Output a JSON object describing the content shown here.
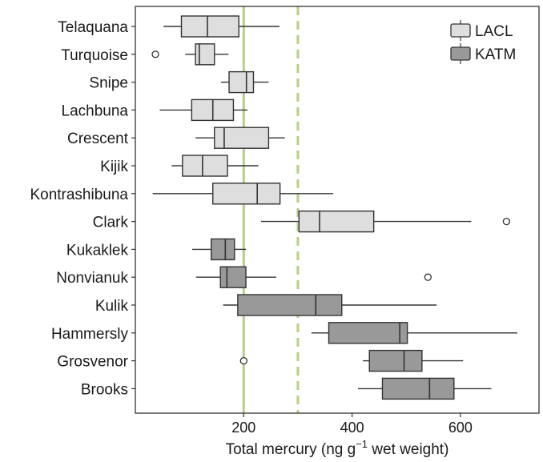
{
  "chart_data": {
    "type": "box",
    "orientation": "horizontal",
    "xlabel": {
      "prefix": "Total mercury (ng g",
      "superscript": "−1",
      "suffix": " wet weight)"
    },
    "xlim": [
      0,
      745
    ],
    "xticks": [
      200,
      400,
      600
    ],
    "xtick_labels": [
      "200",
      "400",
      "600"
    ],
    "reference_lines": [
      {
        "x": 200,
        "style": "solid",
        "color": "#b5cf86"
      },
      {
        "x": 300,
        "style": "dashed",
        "color": "#b5cf86"
      }
    ],
    "legend": {
      "position": "top-right",
      "entries": [
        {
          "label": "LACL",
          "color": "#dedede"
        },
        {
          "label": "KATM",
          "color": "#999999"
        }
      ]
    },
    "series": [
      {
        "name": "LACL",
        "color": "#dedede"
      },
      {
        "name": "KATM",
        "color": "#999999"
      }
    ],
    "boxes": [
      {
        "category": "Telaquana",
        "group": "LACL",
        "whisker_low": 52,
        "q1": 85,
        "median": 133,
        "q3": 191,
        "whisker_high": 266,
        "outliers": []
      },
      {
        "category": "Turquoise",
        "group": "LACL",
        "whisker_low": 92,
        "q1": 111,
        "median": 118,
        "q3": 146,
        "whisker_high": 172,
        "outliers": [
          37
        ]
      },
      {
        "category": "Snipe",
        "group": "LACL",
        "whisker_low": 158,
        "q1": 173,
        "median": 205,
        "q3": 218,
        "whisker_high": 246,
        "outliers": []
      },
      {
        "category": "Lachbuna",
        "group": "LACL",
        "whisker_low": 45,
        "q1": 104,
        "median": 143,
        "q3": 181,
        "whisker_high": 207,
        "outliers": []
      },
      {
        "category": "Crescent",
        "group": "LACL",
        "whisker_low": 111,
        "q1": 146,
        "median": 164,
        "q3": 246,
        "whisker_high": 276,
        "outliers": []
      },
      {
        "category": "Kijik",
        "group": "LACL",
        "whisker_low": 67,
        "q1": 87,
        "median": 124,
        "q3": 170,
        "whisker_high": 227,
        "outliers": []
      },
      {
        "category": "Kontrashibuna",
        "group": "LACL",
        "whisker_low": 32,
        "q1": 143,
        "median": 225,
        "q3": 267,
        "whisker_high": 365,
        "outliers": []
      },
      {
        "category": "Clark",
        "group": "LACL",
        "whisker_low": 232,
        "q1": 302,
        "median": 340,
        "q3": 440,
        "whisker_high": 620,
        "outliers": [
          685
        ]
      },
      {
        "category": "Kukaklek",
        "group": "KATM",
        "whisker_low": 105,
        "q1": 140,
        "median": 166,
        "q3": 183,
        "whisker_high": 204,
        "outliers": []
      },
      {
        "category": "Nonvianuk",
        "group": "KATM",
        "whisker_low": 112,
        "q1": 157,
        "median": 169,
        "q3": 204,
        "whisker_high": 260,
        "outliers": [
          540
        ]
      },
      {
        "category": "Kulik",
        "group": "KATM",
        "whisker_low": 162,
        "q1": 189,
        "median": 333,
        "q3": 381,
        "whisker_high": 556,
        "outliers": []
      },
      {
        "category": "Hammersly",
        "group": "KATM",
        "whisker_low": 325,
        "q1": 357,
        "median": 488,
        "q3": 502,
        "whisker_high": 705,
        "outliers": []
      },
      {
        "category": "Grosvenor",
        "group": "KATM",
        "whisker_low": 420,
        "q1": 432,
        "median": 496,
        "q3": 529,
        "whisker_high": 605,
        "outliers": [
          200
        ]
      },
      {
        "category": "Brooks",
        "group": "KATM",
        "whisker_low": 411,
        "q1": 456,
        "median": 543,
        "q3": 588,
        "whisker_high": 657,
        "outliers": []
      }
    ]
  }
}
